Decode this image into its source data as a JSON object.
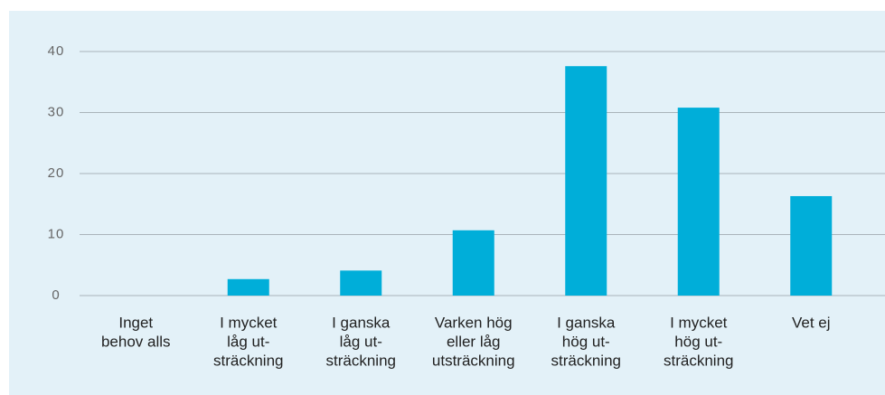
{
  "chart_data": {
    "type": "bar",
    "categories": [
      [
        "Inget",
        "behov alls"
      ],
      [
        "I mycket",
        "låg ut-",
        "sträckning"
      ],
      [
        "I ganska",
        "låg ut-",
        "sträckning"
      ],
      [
        "Varken hög",
        "eller låg",
        "utsträckning"
      ],
      [
        "I ganska",
        "hög ut-",
        "sträckning"
      ],
      [
        "I mycket",
        "hög ut-",
        "sträckning"
      ],
      [
        "Vet ej"
      ]
    ],
    "values": [
      0,
      2.7,
      4.1,
      10.7,
      37.6,
      30.8,
      16.3
    ],
    "color": "#00aed9",
    "ylim": [
      0,
      40
    ],
    "yticks": [
      0,
      10,
      20,
      30,
      40
    ],
    "grid": true
  }
}
